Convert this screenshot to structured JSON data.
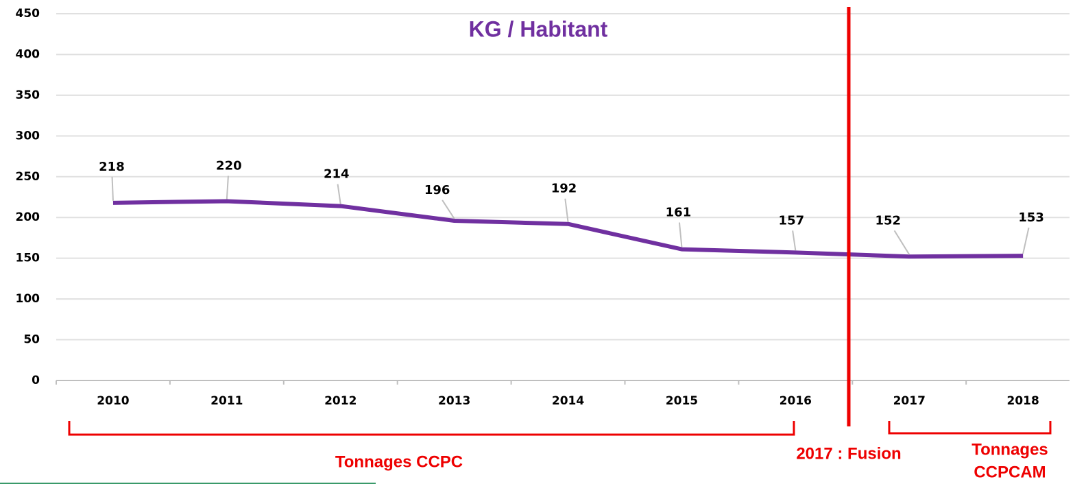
{
  "chart_data": {
    "type": "line",
    "title": "KG / Habitant",
    "categories": [
      "2010",
      "2011",
      "2012",
      "2013",
      "2014",
      "2015",
      "2016",
      "2017",
      "2018"
    ],
    "series": [
      {
        "name": "KG / Habitant",
        "color": "#7030a0",
        "values": [
          218,
          220,
          214,
          196,
          192,
          161,
          157,
          152,
          153
        ]
      }
    ],
    "ylim": [
      0,
      450
    ],
    "yticks": [
      0,
      50,
      100,
      150,
      200,
      250,
      300,
      350,
      400,
      450
    ],
    "grid": true,
    "annotations": [
      "Tonnages CCPC",
      "2017 : Fusion",
      "Tonnages",
      "CCPCAM"
    ],
    "annotation_color": "#ee0000"
  }
}
